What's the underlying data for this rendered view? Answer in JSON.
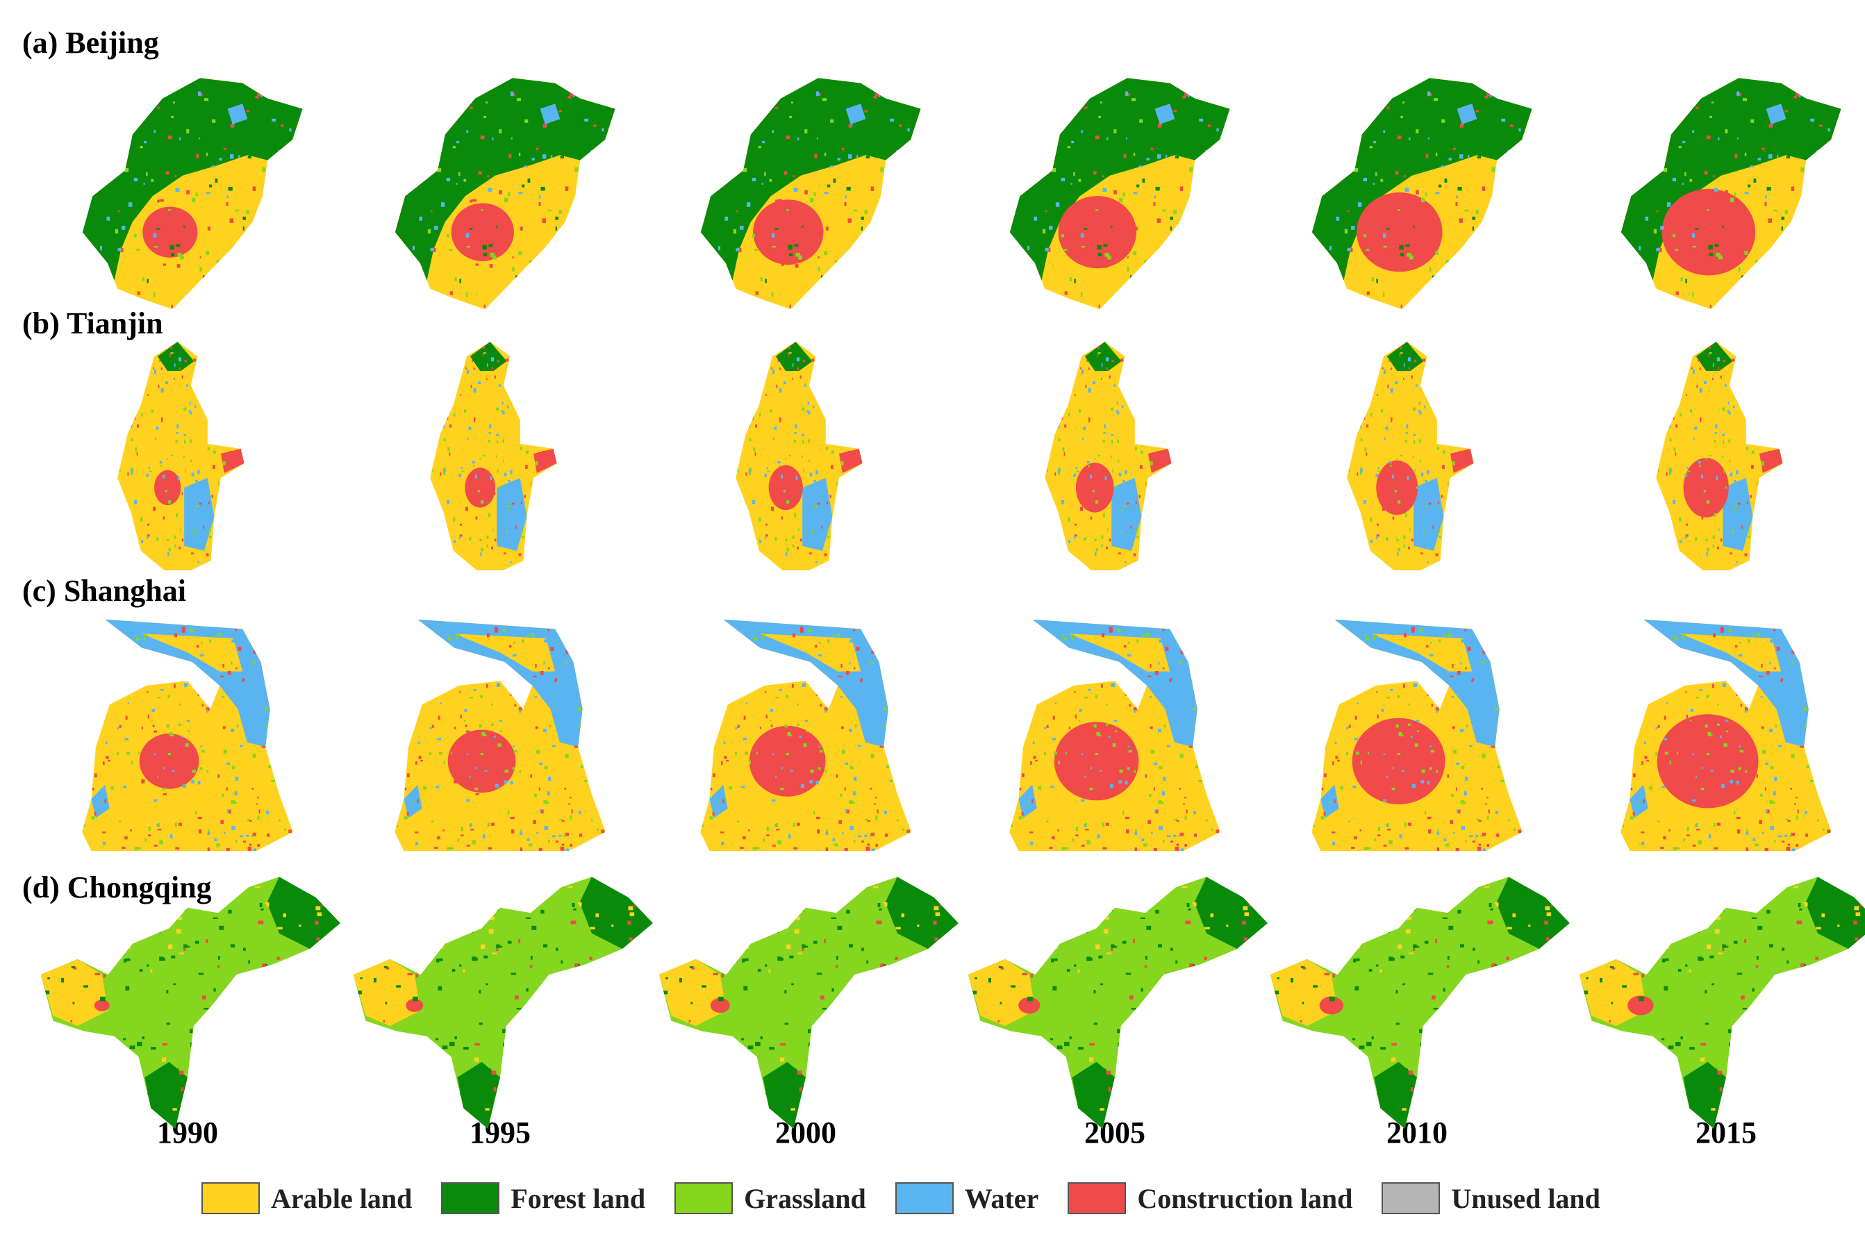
{
  "figure": {
    "rows": [
      {
        "key": "beijing",
        "label": "(a) Beijing"
      },
      {
        "key": "tianjin",
        "label": "(b) Tianjin"
      },
      {
        "key": "shanghai",
        "label": "(c) Shanghai"
      },
      {
        "key": "chongqing",
        "label": "(d) Chongqing"
      }
    ],
    "years": [
      "1990",
      "1995",
      "2000",
      "2005",
      "2010",
      "2015"
    ],
    "legend": [
      {
        "key": "arable",
        "label": "Arable land",
        "color": "#ffd21f"
      },
      {
        "key": "forest",
        "label": "Forest land",
        "color": "#0a8a0a"
      },
      {
        "key": "grass",
        "label": "Grassland",
        "color": "#84d61e"
      },
      {
        "key": "water",
        "label": "Water",
        "color": "#5ab4f0"
      },
      {
        "key": "construction",
        "label": "Construction land",
        "color": "#f04a4a"
      },
      {
        "key": "unused",
        "label": "Unused land",
        "color": "#b4b4b4"
      }
    ]
  }
}
